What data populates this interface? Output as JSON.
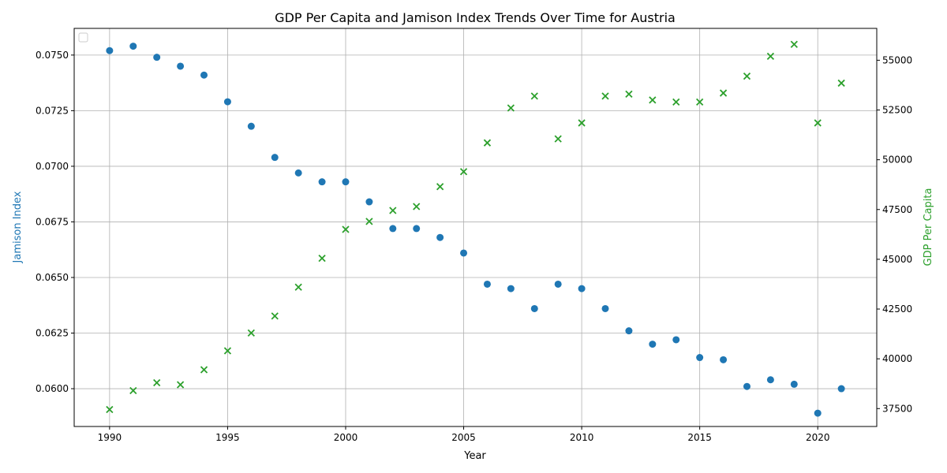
{
  "chart_data": {
    "type": "scatter",
    "title": "GDP Per Capita and Jamison Index Trends Over Time for Austria",
    "xlabel": "Year",
    "ylabel_left": "Jamison Index",
    "ylabel_right": "GDP Per Capita",
    "xlim": [
      1988.5,
      2022.5
    ],
    "ylim_left": [
      0.0583,
      0.0762
    ],
    "ylim_right": [
      36600,
      56600
    ],
    "x_ticks": [
      "1990",
      "1995",
      "2000",
      "2005",
      "2010",
      "2015",
      "2020"
    ],
    "y_left_ticks": [
      "0.0600",
      "0.0625",
      "0.0650",
      "0.0675",
      "0.0700",
      "0.0725",
      "0.0750"
    ],
    "y_right_ticks": [
      "37500",
      "40000",
      "42500",
      "45000",
      "47500",
      "50000",
      "52500",
      "55000"
    ],
    "grid": true,
    "legend": "top-left (empty)",
    "colors": {
      "jamison": "#1f77b4",
      "gdp": "#2ca02c"
    },
    "x": [
      1990,
      1991,
      1992,
      1993,
      1994,
      1995,
      1996,
      1997,
      1998,
      1999,
      2000,
      2001,
      2002,
      2003,
      2004,
      2005,
      2006,
      2007,
      2008,
      2009,
      2010,
      2011,
      2012,
      2013,
      2014,
      2015,
      2016,
      2017,
      2018,
      2019,
      2020,
      2021
    ],
    "series": [
      {
        "axis": "left",
        "marker": "circle",
        "values": [
          0.0752,
          0.0754,
          0.0749,
          0.0745,
          0.0741,
          0.0729,
          0.0718,
          0.0704,
          0.0697,
          0.0693,
          0.0693,
          0.0684,
          0.0672,
          0.0672,
          0.0668,
          0.0661,
          0.0647,
          0.0645,
          0.0636,
          0.0647,
          0.0645,
          0.0636,
          0.0626,
          0.062,
          0.0622,
          0.0614,
          0.0613,
          0.0601,
          0.0604,
          0.0602,
          0.0589,
          0.06
        ]
      },
      {
        "axis": "right",
        "marker": "x",
        "values": [
          37450,
          38400,
          38800,
          38700,
          39450,
          40400,
          41300,
          42150,
          43600,
          45050,
          46500,
          46900,
          47450,
          47650,
          48650,
          49400,
          50850,
          52600,
          53200,
          51050,
          51850,
          53200,
          53300,
          53000,
          52900,
          52900,
          53350,
          54200,
          55200,
          55800,
          51850,
          53850
        ]
      }
    ]
  }
}
